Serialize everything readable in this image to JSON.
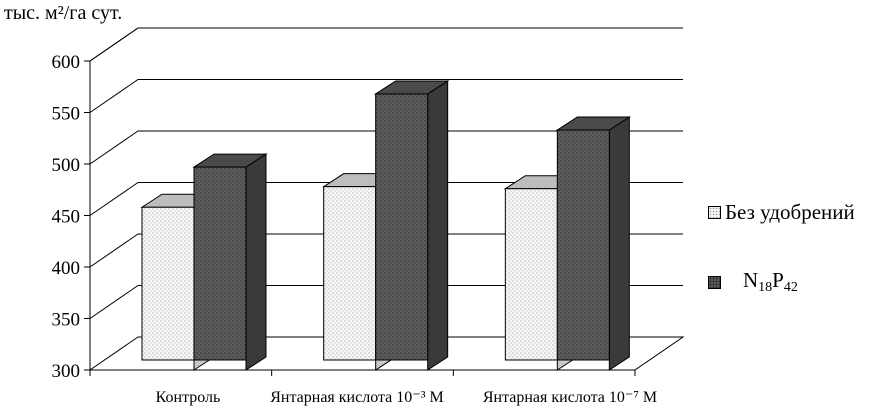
{
  "chart_data": {
    "type": "bar",
    "style": "3d-clustered",
    "ylabel": "тыс. м²/га  сут.",
    "ylim": [
      300,
      600
    ],
    "yticks": [
      300,
      350,
      400,
      450,
      500,
      550,
      600
    ],
    "grid": true,
    "legend_position": "right",
    "categories": [
      "Контроль",
      "Янтарная кислота 10⁻³ М",
      "Янтарная кислота 10⁻⁷ М"
    ],
    "series": [
      {
        "name": "Без удобрений",
        "values": [
          458,
          478,
          476
        ],
        "color": "#f4f4f4"
      },
      {
        "name": "N18P42",
        "values": [
          497,
          568,
          533
        ],
        "color": "#5a5a5a"
      }
    ]
  },
  "legend": {
    "items": [
      {
        "label": "Без удобрений"
      },
      {
        "label_main_1": "N",
        "label_sub_1": "18",
        "label_main_2": "P",
        "label_sub_2": "42"
      }
    ]
  }
}
